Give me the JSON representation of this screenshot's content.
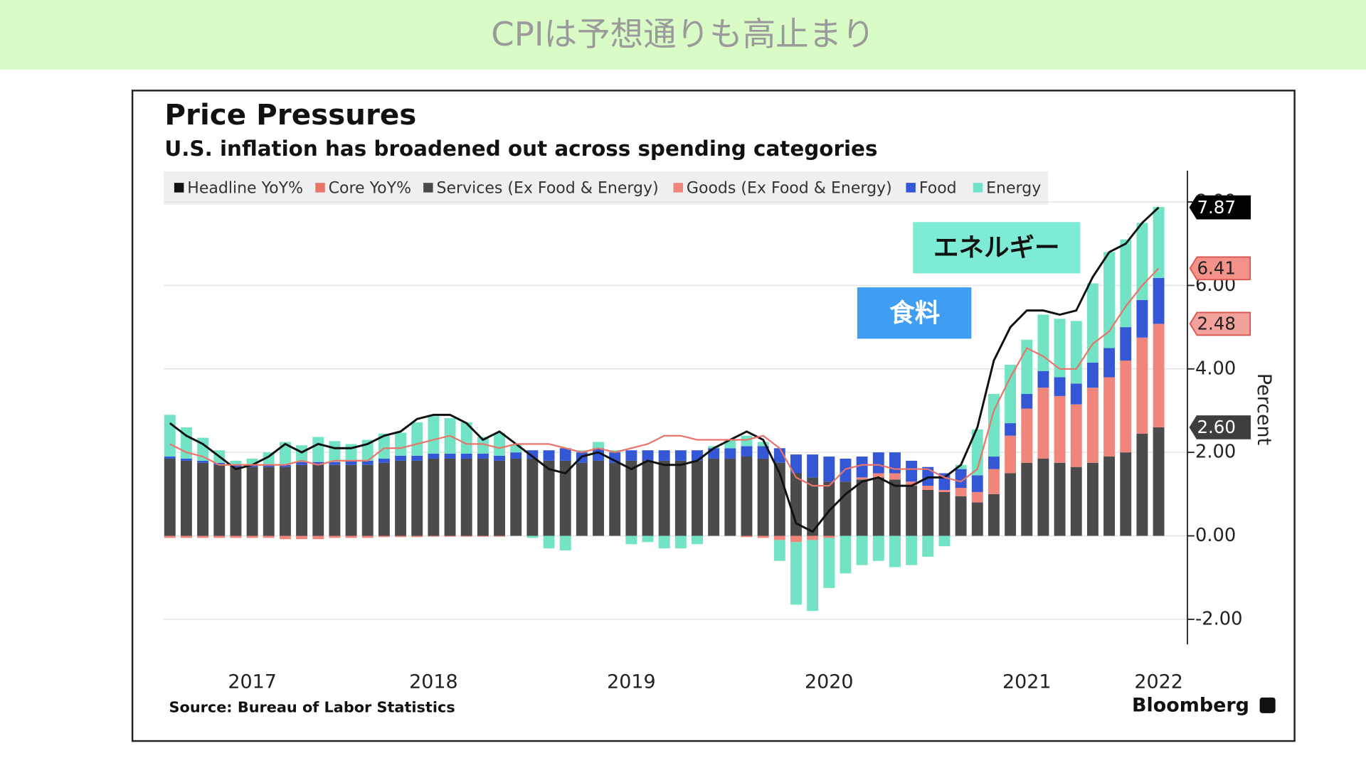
{
  "banner": {
    "title": "CPIは予想通りも高止まり"
  },
  "chart_data": {
    "type": "bar",
    "stacked": true,
    "title": "Price Pressures",
    "subtitle": "U.S. inflation has broadened out across spending categories",
    "source": "Source: Bureau of Labor Statistics",
    "brand": "Bloomberg",
    "ylabel": "Percent",
    "annotations": [
      "エネルギー",
      "食料"
    ],
    "categories": [
      null,
      null,
      null,
      null,
      null,
      "2017",
      null,
      null,
      null,
      null,
      null,
      null,
      null,
      null,
      null,
      null,
      "2018",
      null,
      null,
      null,
      null,
      null,
      null,
      null,
      null,
      null,
      null,
      null,
      "2019",
      null,
      null,
      null,
      null,
      null,
      null,
      null,
      null,
      null,
      null,
      null,
      "2020",
      null,
      null,
      null,
      null,
      null,
      null,
      null,
      null,
      null,
      null,
      null,
      "2021",
      null,
      null,
      null,
      null,
      null,
      null,
      null,
      "2022"
    ],
    "ylim": [
      -2.6,
      8.75
    ],
    "yticks": [
      {
        "value": -2,
        "label": "-2.00"
      },
      {
        "value": 0,
        "label": "0.00"
      },
      {
        "value": 2,
        "label": "2.00"
      },
      {
        "value": 4,
        "label": "4.00"
      },
      {
        "value": 6,
        "label": "6.00"
      },
      {
        "value": 8,
        "label": "8.00"
      }
    ],
    "grid": true,
    "legend": "top-left",
    "series": [
      {
        "name": "Headline YoY%",
        "type": "line",
        "color": "#111111",
        "values": [
          2.7,
          2.4,
          2.2,
          1.9,
          1.6,
          1.7,
          1.9,
          2.2,
          2.0,
          2.2,
          2.1,
          2.1,
          2.2,
          2.4,
          2.5,
          2.8,
          2.9,
          2.9,
          2.7,
          2.3,
          2.5,
          2.2,
          1.9,
          1.6,
          1.5,
          1.9,
          2.0,
          1.8,
          1.6,
          1.8,
          1.7,
          1.7,
          1.8,
          2.1,
          2.3,
          2.5,
          2.3,
          1.5,
          0.3,
          0.1,
          0.6,
          1.0,
          1.3,
          1.4,
          1.2,
          1.2,
          1.4,
          1.4,
          1.7,
          2.6,
          4.2,
          5.0,
          5.4,
          5.4,
          5.3,
          5.4,
          6.2,
          6.8,
          7.0,
          7.5,
          7.87
        ]
      },
      {
        "name": "Core YoY%",
        "type": "line",
        "color": "#e8746a",
        "values": [
          2.2,
          2.0,
          1.9,
          1.7,
          1.7,
          1.7,
          1.7,
          1.7,
          1.8,
          1.7,
          1.8,
          1.8,
          1.8,
          2.1,
          2.1,
          2.2,
          2.3,
          2.4,
          2.2,
          2.2,
          2.1,
          2.2,
          2.2,
          2.2,
          2.1,
          2.0,
          2.1,
          2.0,
          2.1,
          2.2,
          2.4,
          2.4,
          2.3,
          2.3,
          2.3,
          2.3,
          2.4,
          2.1,
          1.4,
          1.2,
          1.2,
          1.6,
          1.7,
          1.7,
          1.6,
          1.6,
          1.6,
          1.4,
          1.3,
          1.6,
          3.0,
          3.8,
          4.5,
          4.3,
          4.0,
          4.0,
          4.6,
          4.9,
          5.5,
          6.0,
          6.41
        ]
      },
      {
        "name": "Services (Ex Food & Energy)",
        "type": "bar",
        "color": "#4b4b4b",
        "values": [
          1.85,
          1.8,
          1.75,
          1.7,
          1.65,
          1.65,
          1.65,
          1.65,
          1.7,
          1.7,
          1.7,
          1.7,
          1.7,
          1.75,
          1.8,
          1.8,
          1.85,
          1.85,
          1.85,
          1.85,
          1.8,
          1.85,
          1.85,
          1.8,
          1.8,
          1.75,
          1.8,
          1.75,
          1.8,
          1.8,
          1.8,
          1.8,
          1.8,
          1.85,
          1.85,
          1.9,
          1.85,
          1.75,
          1.5,
          1.4,
          1.3,
          1.3,
          1.35,
          1.4,
          1.35,
          1.2,
          1.1,
          1.05,
          0.95,
          0.8,
          1.0,
          1.5,
          1.75,
          1.85,
          1.75,
          1.65,
          1.75,
          1.9,
          2.0,
          2.45,
          2.6
        ],
        "value_labels": [
          null,
          null,
          null,
          null,
          null,
          null,
          null,
          null,
          null,
          null,
          null,
          null,
          null,
          null,
          null,
          null,
          null,
          null,
          null,
          null,
          null,
          null,
          null,
          null,
          null,
          null,
          null,
          null,
          null,
          null,
          null,
          null,
          null,
          null,
          null,
          null,
          null,
          null,
          null,
          null,
          null,
          null,
          null,
          null,
          null,
          null,
          null,
          null,
          null,
          null,
          null,
          null,
          null,
          null,
          null,
          null,
          null,
          null,
          null,
          null,
          "2.60"
        ]
      },
      {
        "name": "Goods (Ex Food & Energy)",
        "type": "bar",
        "color": "#f0857c",
        "values": [
          -0.05,
          -0.05,
          -0.05,
          -0.05,
          -0.05,
          -0.05,
          -0.05,
          -0.08,
          -0.08,
          -0.08,
          -0.05,
          -0.05,
          -0.05,
          -0.03,
          -0.03,
          -0.03,
          -0.02,
          -0.02,
          -0.02,
          -0.02,
          -0.02,
          0,
          0,
          0,
          0,
          0,
          0,
          0,
          0,
          0,
          0,
          0,
          0,
          0,
          0,
          -0.03,
          -0.05,
          -0.1,
          -0.15,
          -0.1,
          -0.05,
          0,
          0.05,
          0.1,
          0.15,
          0.1,
          0.1,
          0.05,
          0.2,
          0.25,
          0.6,
          0.9,
          1.3,
          1.7,
          1.6,
          1.5,
          1.8,
          1.9,
          2.2,
          2.3,
          2.48
        ]
      },
      {
        "name": "Food",
        "type": "bar",
        "color": "#3457d5",
        "values": [
          0.05,
          0.05,
          0.05,
          0.05,
          0.05,
          0.05,
          0.05,
          0.05,
          0.07,
          0.07,
          0.07,
          0.1,
          0.1,
          0.1,
          0.12,
          0.12,
          0.12,
          0.12,
          0.12,
          0.12,
          0.12,
          0.15,
          0.2,
          0.25,
          0.3,
          0.25,
          0.3,
          0.25,
          0.25,
          0.25,
          0.25,
          0.25,
          0.25,
          0.25,
          0.25,
          0.25,
          0.3,
          0.35,
          0.45,
          0.55,
          0.6,
          0.55,
          0.5,
          0.5,
          0.5,
          0.5,
          0.45,
          0.4,
          0.45,
          0.4,
          0.3,
          0.3,
          0.35,
          0.4,
          0.45,
          0.5,
          0.6,
          0.7,
          0.8,
          0.9,
          1.1
        ]
      },
      {
        "name": "Energy",
        "type": "bar",
        "color": "#72e3c4",
        "values": [
          1.0,
          0.75,
          0.55,
          0.3,
          0.1,
          0.15,
          0.3,
          0.55,
          0.4,
          0.6,
          0.5,
          0.4,
          0.5,
          0.6,
          0.55,
          0.8,
          0.9,
          0.85,
          0.75,
          0.4,
          0.55,
          0.2,
          -0.05,
          -0.3,
          -0.35,
          0.05,
          0.15,
          0.05,
          -0.2,
          -0.15,
          -0.3,
          -0.3,
          -0.2,
          0.05,
          0.2,
          0.25,
          0.1,
          -0.5,
          -1.5,
          -1.7,
          -1.2,
          -0.9,
          -0.7,
          -0.6,
          -0.75,
          -0.7,
          -0.5,
          -0.25,
          0.1,
          1.1,
          1.5,
          1.4,
          1.3,
          1.35,
          1.4,
          1.5,
          1.9,
          2.3,
          2.1,
          1.85,
          1.7
        ]
      }
    ]
  }
}
